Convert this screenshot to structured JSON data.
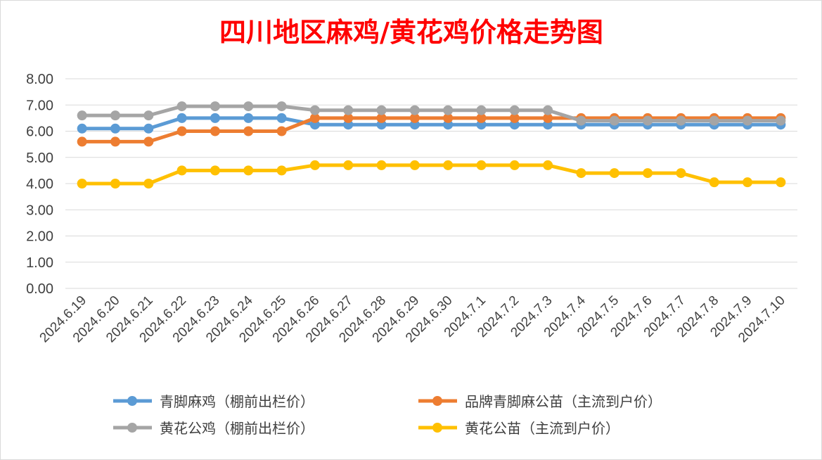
{
  "chart_data": {
    "type": "line",
    "title": "四川地区麻鸡/黄花鸡价格走势图",
    "title_color": "#ff0000",
    "categories": [
      "2024.6.19",
      "2024.6.20",
      "2024.6.21",
      "2024.6.22",
      "2024.6.23",
      "2024.6.24",
      "2024.6.25",
      "2024.6.26",
      "2024.6.27",
      "2024.6.28",
      "2024.6.29",
      "2024.6.30",
      "2024.7.1",
      "2024.7.2",
      "2024.7.3",
      "2024.7.4",
      "2024.7.5",
      "2024.7.6",
      "2024.7.7",
      "2024.7.8",
      "2024.7.9",
      "2024.7.10"
    ],
    "ylim": [
      0,
      8
    ],
    "yticks": [
      "0.00",
      "1.00",
      "2.00",
      "3.00",
      "4.00",
      "5.00",
      "6.00",
      "7.00",
      "8.00"
    ],
    "grid": true,
    "legend_position": "bottom",
    "series": [
      {
        "name": "青脚麻鸡（棚前出栏价）",
        "color": "#5b9bd5",
        "values": [
          6.1,
          6.1,
          6.1,
          6.5,
          6.5,
          6.5,
          6.5,
          6.25,
          6.25,
          6.25,
          6.25,
          6.25,
          6.25,
          6.25,
          6.25,
          6.25,
          6.25,
          6.25,
          6.25,
          6.25,
          6.25,
          6.25
        ]
      },
      {
        "name": "品牌青脚麻公苗（主流到户价）",
        "color": "#ed7d31",
        "values": [
          5.6,
          5.6,
          5.6,
          6.0,
          6.0,
          6.0,
          6.0,
          6.5,
          6.5,
          6.5,
          6.5,
          6.5,
          6.5,
          6.5,
          6.5,
          6.5,
          6.5,
          6.5,
          6.5,
          6.5,
          6.5,
          6.5
        ]
      },
      {
        "name": "黄花公鸡（棚前出栏价）",
        "color": "#a5a5a5",
        "values": [
          6.6,
          6.6,
          6.6,
          6.95,
          6.95,
          6.95,
          6.95,
          6.8,
          6.8,
          6.8,
          6.8,
          6.8,
          6.8,
          6.8,
          6.8,
          6.4,
          6.4,
          6.4,
          6.4,
          6.4,
          6.4,
          6.4
        ]
      },
      {
        "name": "黄花公苗（主流到户价）",
        "color": "#ffc000",
        "values": [
          4.0,
          4.0,
          4.0,
          4.5,
          4.5,
          4.5,
          4.5,
          4.7,
          4.7,
          4.7,
          4.7,
          4.7,
          4.7,
          4.7,
          4.7,
          4.4,
          4.4,
          4.4,
          4.4,
          4.05,
          4.05,
          4.05
        ]
      }
    ]
  }
}
